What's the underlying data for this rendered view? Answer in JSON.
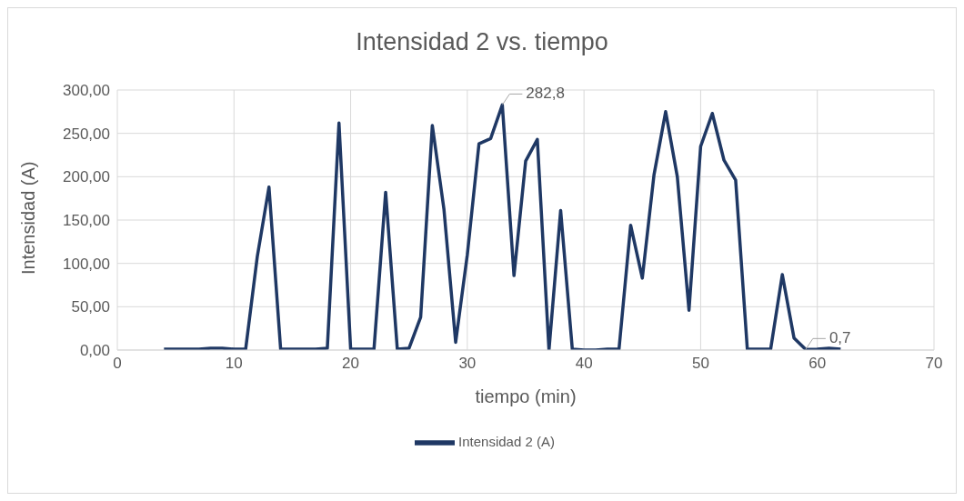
{
  "chart_data": {
    "type": "line",
    "title": "Intensidad 2 vs. tiempo",
    "xlabel": "tiempo (min)",
    "ylabel": "Intensidad (A)",
    "x": [
      4,
      5,
      6,
      7,
      8,
      9,
      10,
      11,
      12,
      13,
      14,
      15,
      16,
      17,
      18,
      19,
      20,
      21,
      22,
      23,
      24,
      25,
      26,
      27,
      28,
      29,
      30,
      31,
      32,
      33,
      34,
      35,
      36,
      37,
      38,
      39,
      40,
      41,
      42,
      43,
      44,
      45,
      46,
      47,
      48,
      49,
      50,
      51,
      52,
      53,
      54,
      55,
      56,
      57,
      58,
      59,
      60,
      61,
      62
    ],
    "series": [
      {
        "name": "Intensidad 2 (A)",
        "color": "#1f3864",
        "values": [
          1,
          1,
          1,
          1,
          2,
          2,
          1,
          1,
          108,
          188,
          1,
          1,
          1,
          1,
          2,
          262,
          1,
          1,
          1,
          182,
          1,
          2,
          38,
          259,
          162,
          9,
          110,
          238,
          244,
          282.8,
          86,
          218,
          243,
          0,
          161,
          1,
          0,
          0,
          1,
          1,
          144,
          83,
          202,
          275,
          200,
          46,
          235,
          273,
          219,
          196,
          1,
          1,
          1,
          87,
          14,
          0.7,
          1,
          2,
          1
        ],
        "value_labels": [
          null,
          null,
          null,
          null,
          null,
          null,
          null,
          null,
          null,
          null,
          null,
          null,
          null,
          null,
          null,
          null,
          null,
          null,
          null,
          null,
          null,
          null,
          null,
          null,
          null,
          null,
          null,
          null,
          null,
          "282,8",
          null,
          null,
          null,
          null,
          null,
          null,
          null,
          null,
          null,
          null,
          null,
          null,
          null,
          null,
          null,
          null,
          null,
          null,
          null,
          null,
          null,
          null,
          null,
          null,
          null,
          "0,7",
          null,
          null,
          null
        ]
      }
    ],
    "xlim": [
      0,
      70
    ],
    "xticks": [
      0,
      10,
      20,
      30,
      40,
      50,
      60,
      70
    ],
    "ylim": [
      0,
      300
    ],
    "yticks": [
      {
        "value": 0,
        "label": "0,00"
      },
      {
        "value": 50,
        "label": "50,00"
      },
      {
        "value": 100,
        "label": "100,00"
      },
      {
        "value": 150,
        "label": "150,00"
      },
      {
        "value": 200,
        "label": "200,00"
      },
      {
        "value": 250,
        "label": "250,00"
      },
      {
        "value": 300,
        "label": "300,00"
      }
    ],
    "grid": true,
    "legend": "bottom",
    "marker": "none",
    "line_style": "solid"
  }
}
